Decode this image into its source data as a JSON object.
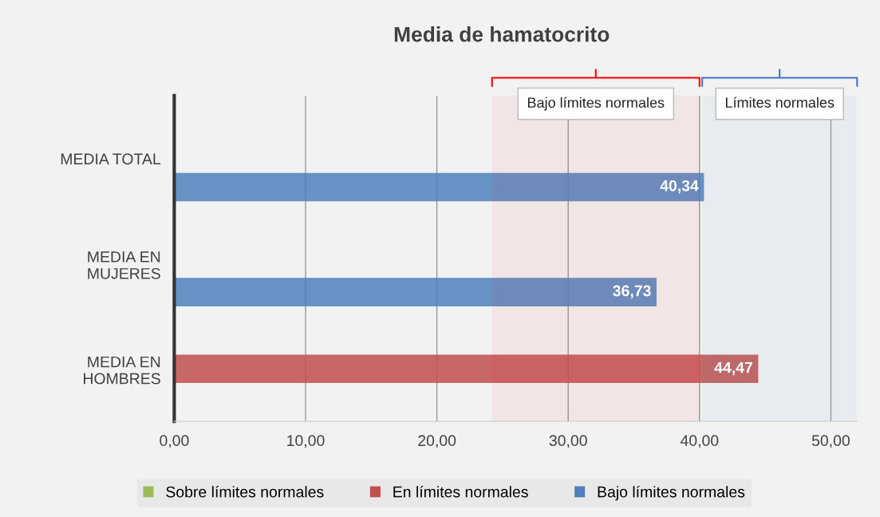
{
  "chart_data": {
    "type": "bar",
    "orientation": "horizontal",
    "title": "Media de hamatocrito",
    "categories": [
      "MEDIA TOTAL",
      "MEDIA EN\nMUJERES",
      "MEDIA EN\nHOMBRES"
    ],
    "series": [
      {
        "name": "Sobre límites normales",
        "color": "#9bbb59",
        "values": [
          null,
          null,
          null
        ]
      },
      {
        "name": "En límites normales",
        "color": "#c0504d",
        "values": [
          null,
          null,
          44.47
        ],
        "value_labels": [
          null,
          null,
          "44,47"
        ]
      },
      {
        "name": "Bajo límites normales",
        "color": "#4f81bd",
        "values": [
          40.34,
          36.73,
          null
        ],
        "value_labels": [
          "40,34",
          "36,73",
          null
        ]
      }
    ],
    "xlim": [
      0,
      52
    ],
    "xticks": [
      {
        "value": 0,
        "label": "0,00"
      },
      {
        "value": 10,
        "label": "10,00"
      },
      {
        "value": 20,
        "label": "20,00"
      },
      {
        "value": 30,
        "label": "30,00"
      },
      {
        "value": 40,
        "label": "40,00"
      },
      {
        "value": 50,
        "label": "50,00"
      }
    ],
    "grid": "x",
    "legend": "bottom",
    "bands": [
      {
        "axis": "x",
        "from": 24.2,
        "to": 40,
        "label": "Bajo límites normales",
        "color": "#ff0000"
      },
      {
        "axis": "x",
        "from": 40.2,
        "to": 52,
        "label": "Límites normales",
        "color": "#4472c4"
      }
    ]
  }
}
